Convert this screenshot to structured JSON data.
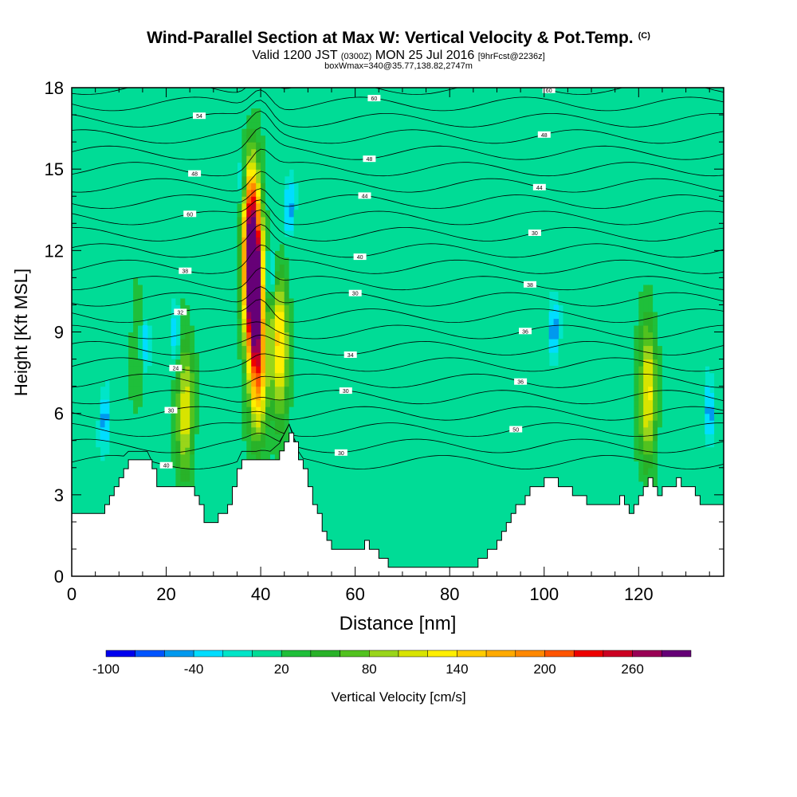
{
  "header": {
    "title": "Wind-Parallel Section at Max W: Vertical Velocity & Pot.Temp.",
    "copyright": "(C)",
    "valid_prefix": "Valid 1200 JST",
    "utc_time": "(0300Z)",
    "valid_date": "MON 25 Jul 2016",
    "forecast": "[9hrFcst@2236z]",
    "box_info": "boxWmax=340@35.77,138.82,2747m"
  },
  "chart_data": {
    "type": "heatmap",
    "xlabel": "Distance [nm]",
    "ylabel": "Height [Kft MSL]",
    "xlim": [
      0,
      138
    ],
    "ylim": [
      0,
      18
    ],
    "x_ticks": [
      "0",
      "20",
      "40",
      "60",
      "80",
      "100",
      "120"
    ],
    "x_tick_values": [
      0,
      20,
      40,
      60,
      80,
      100,
      120
    ],
    "y_ticks": [
      "0",
      "3",
      "6",
      "9",
      "12",
      "15",
      "18"
    ],
    "y_tick_values": [
      0,
      3,
      6,
      9,
      12,
      15,
      18
    ],
    "terrain_kft": [
      [
        0,
        2.3
      ],
      [
        6,
        2.3
      ],
      [
        9,
        3.3
      ],
      [
        12,
        4.3
      ],
      [
        16,
        4.3
      ],
      [
        18,
        3.3
      ],
      [
        20,
        3.3
      ],
      [
        22,
        3.3
      ],
      [
        24,
        3.3
      ],
      [
        26,
        3.0
      ],
      [
        28,
        2.0
      ],
      [
        30,
        2.0
      ],
      [
        32,
        2.3
      ],
      [
        34,
        3.3
      ],
      [
        36,
        4.3
      ],
      [
        40,
        4.3
      ],
      [
        42,
        4.3
      ],
      [
        44,
        4.6
      ],
      [
        46,
        5.3
      ],
      [
        48,
        4.3
      ],
      [
        50,
        3.3
      ],
      [
        52,
        2.3
      ],
      [
        54,
        1.3
      ],
      [
        56,
        1.0
      ],
      [
        58,
        1.0
      ],
      [
        60,
        1.0
      ],
      [
        62,
        1.3
      ],
      [
        64,
        1.0
      ],
      [
        66,
        0.6
      ],
      [
        68,
        0.3
      ],
      [
        72,
        0.3
      ],
      [
        76,
        0.3
      ],
      [
        80,
        0.3
      ],
      [
        84,
        0.3
      ],
      [
        86,
        0.6
      ],
      [
        88,
        1.0
      ],
      [
        90,
        1.3
      ],
      [
        92,
        2.0
      ],
      [
        94,
        2.6
      ],
      [
        96,
        3.0
      ],
      [
        98,
        3.3
      ],
      [
        100,
        3.6
      ],
      [
        102,
        3.6
      ],
      [
        104,
        3.3
      ],
      [
        106,
        3.0
      ],
      [
        108,
        3.0
      ],
      [
        110,
        2.6
      ],
      [
        112,
        2.6
      ],
      [
        114,
        2.6
      ],
      [
        116,
        3.0
      ],
      [
        118,
        2.3
      ],
      [
        120,
        3.0
      ],
      [
        122,
        3.6
      ],
      [
        124,
        3.0
      ],
      [
        126,
        3.3
      ],
      [
        128,
        3.6
      ],
      [
        130,
        3.3
      ],
      [
        132,
        3.0
      ],
      [
        134,
        2.6
      ],
      [
        136,
        2.6
      ],
      [
        138,
        2.6
      ]
    ],
    "updrafts": [
      {
        "x": 38.5,
        "z": 10.5,
        "peak": 300
      },
      {
        "x": 38.0,
        "z": 13.0,
        "peak": 200
      },
      {
        "x": 39.5,
        "z": 7.5,
        "peak": 150
      },
      {
        "x": 44.0,
        "z": 8.5,
        "peak": 140
      },
      {
        "x": 24.0,
        "z": 6.2,
        "peak": 110
      },
      {
        "x": 122.0,
        "z": 6.8,
        "peak": 120
      },
      {
        "x": 14.0,
        "z": 8.5,
        "peak": 30
      }
    ],
    "downdrafts": [
      {
        "x": 42.0,
        "z": 11.0,
        "peak": -40
      },
      {
        "x": 36.0,
        "z": 14.5,
        "peak": -40
      },
      {
        "x": 15.5,
        "z": 8.7,
        "peak": -40
      },
      {
        "x": 22.0,
        "z": 9.0,
        "peak": -40
      },
      {
        "x": 102.0,
        "z": 9.0,
        "peak": -40
      },
      {
        "x": 46.0,
        "z": 13.5,
        "peak": -40
      },
      {
        "x": 135.0,
        "z": 6.0,
        "peak": -40
      },
      {
        "x": 7.0,
        "z": 5.8,
        "peak": -40
      }
    ],
    "theta_levels": [
      {
        "base_kft": 4.2,
        "label": "40"
      },
      {
        "base_kft": 4.8,
        "label": "30"
      },
      {
        "base_kft": 5.4,
        "label": "50"
      },
      {
        "base_kft": 6.0,
        "label": "30"
      },
      {
        "base_kft": 6.6,
        "label": "30"
      },
      {
        "base_kft": 7.2,
        "label": "36"
      },
      {
        "base_kft": 7.8,
        "label": "24"
      },
      {
        "base_kft": 8.4,
        "label": "34"
      },
      {
        "base_kft": 9.0,
        "label": "36"
      },
      {
        "base_kft": 9.6,
        "label": "32"
      },
      {
        "base_kft": 10.2,
        "label": "30"
      },
      {
        "base_kft": 10.8,
        "label": "38"
      },
      {
        "base_kft": 11.4,
        "label": "38"
      },
      {
        "base_kft": 12.0,
        "label": "40"
      },
      {
        "base_kft": 12.6,
        "label": "30"
      },
      {
        "base_kft": 13.2,
        "label": "60"
      },
      {
        "base_kft": 13.8,
        "label": "44"
      },
      {
        "base_kft": 14.4,
        "label": "44"
      },
      {
        "base_kft": 15.0,
        "label": "48"
      },
      {
        "base_kft": 15.6,
        "label": "48"
      },
      {
        "base_kft": 16.2,
        "label": "48"
      },
      {
        "base_kft": 16.8,
        "label": "54"
      },
      {
        "base_kft": 17.4,
        "label": "60"
      },
      {
        "base_kft": 18.0,
        "label": "60"
      }
    ],
    "colorbar": {
      "label": "Vertical Velocity [cm/s]",
      "tick_labels": [
        "-100",
        "-40",
        "20",
        "80",
        "140",
        "200",
        "260"
      ],
      "tick_values": [
        -100,
        -40,
        20,
        80,
        140,
        200,
        260
      ],
      "bins": [
        -100,
        -80,
        -60,
        -40,
        -20,
        0,
        20,
        40,
        60,
        80,
        100,
        120,
        140,
        160,
        180,
        200,
        220,
        240,
        260,
        280,
        300
      ],
      "colors": [
        "#0000ee",
        "#0055ff",
        "#0099ee",
        "#00ddff",
        "#00e5c8",
        "#00dc96",
        "#1fbf3a",
        "#29b229",
        "#52c21f",
        "#99d51a",
        "#d8e400",
        "#ffef00",
        "#ffcc00",
        "#ffaa00",
        "#ff8800",
        "#ff5500",
        "#ee0000",
        "#cc0022",
        "#990055",
        "#660077"
      ]
    }
  }
}
